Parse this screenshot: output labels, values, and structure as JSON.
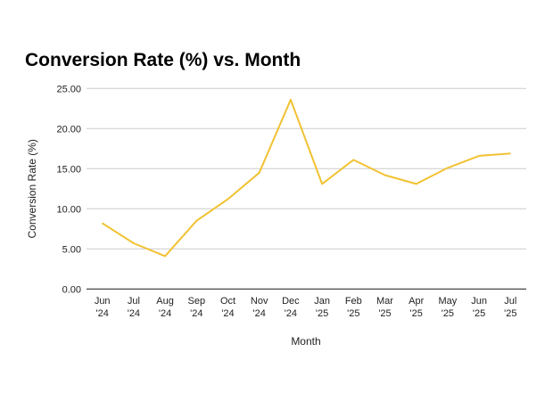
{
  "chart_data": {
    "type": "line",
    "title": "Conversion Rate (%) vs. Month",
    "xlabel": "Month",
    "ylabel": "Conversion Rate (%)",
    "categories": [
      "Jun '24",
      "Jul '24",
      "Aug '24",
      "Sep '24",
      "Oct '24",
      "Nov '24",
      "Dec '24",
      "Jan '25",
      "Feb '25",
      "Mar '25",
      "Apr '25",
      "May '25",
      "Jun '25",
      "Jul '25"
    ],
    "values": [
      8.2,
      5.7,
      4.1,
      8.5,
      11.2,
      14.5,
      23.6,
      13.1,
      16.1,
      14.2,
      13.1,
      15.1,
      16.6,
      16.9
    ],
    "ylim": [
      0,
      25
    ],
    "yticks": [
      "0.00",
      "5.00",
      "10.00",
      "15.00",
      "20.00",
      "25.00"
    ],
    "grid": true,
    "legend": "none",
    "line_color": "#F1C232"
  }
}
